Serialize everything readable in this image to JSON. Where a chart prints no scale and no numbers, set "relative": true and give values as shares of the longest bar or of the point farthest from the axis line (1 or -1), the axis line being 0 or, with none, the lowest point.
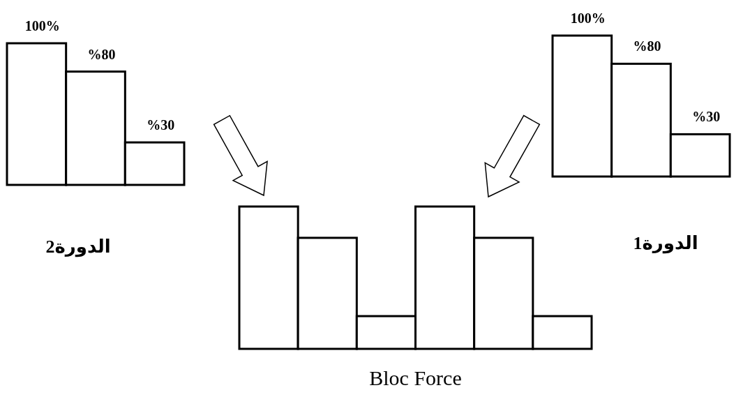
{
  "chart_data": [
    {
      "type": "bar",
      "categories": [
        null,
        null,
        null
      ],
      "values": [
        100,
        80,
        30
      ],
      "color": "#ffffff",
      "value_labels": [
        "100%",
        "%80",
        "%30"
      ],
      "annotations": [
        "الدورة2"
      ]
    },
    {
      "type": "bar",
      "categories": [
        null,
        null,
        null
      ],
      "values": [
        100,
        80,
        30
      ],
      "color": "#ffffff",
      "value_labels": [
        "100%",
        "%80",
        "%30"
      ],
      "annotations": [
        "الدورة1"
      ]
    },
    {
      "type": "bar",
      "categories": [
        null,
        null,
        null,
        null,
        null,
        null
      ],
      "values": [
        1,
        0.78,
        0.23,
        1,
        0.78,
        0.23
      ],
      "relative": true,
      "color": "#ffffff",
      "xlabel": "Bloc Force"
    }
  ]
}
